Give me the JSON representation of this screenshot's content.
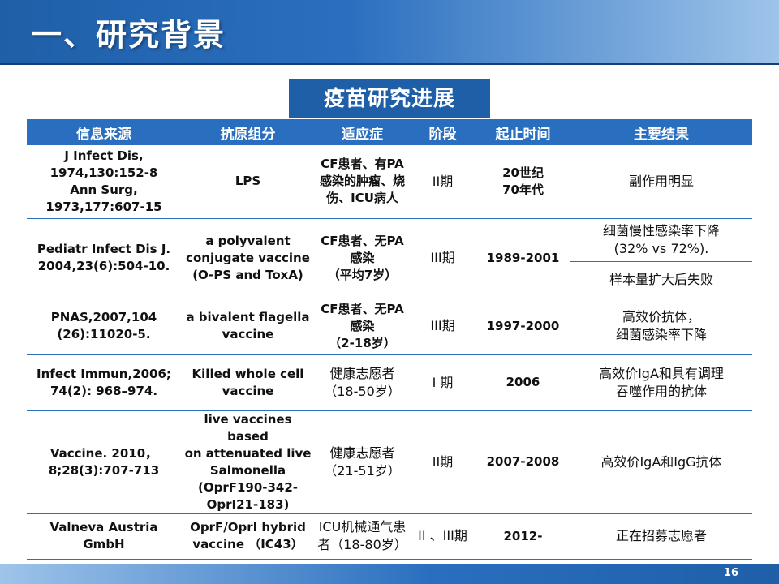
{
  "slide": {
    "title": "一、研究背景",
    "table_caption": "疫苗研究进展",
    "page_number": "16"
  },
  "table": {
    "headers": [
      "信息来源",
      "抗原组分",
      "适应症",
      "阶段",
      "起止时间",
      "主要结果"
    ],
    "rows": [
      {
        "source": "J Infect Dis,\n1974,130:152-8\nAnn Surg,\n1973,177:607-15",
        "antigen": "LPS",
        "indication": "CF患者、有PA\n感染的肿瘤、烧\n伤、ICU病人",
        "phase": "II期",
        "period": "20世纪\n70年代",
        "results": [
          "副作用明显"
        ]
      },
      {
        "source": "Pediatr Infect Dis J.\n2004,23(6):504-10.",
        "antigen": "a polyvalent\nconjugate vaccine\n(O-PS and ToxA)",
        "indication": "CF患者、无PA\n感染\n（平均7岁）",
        "phase": "III期",
        "period": "1989-2001",
        "results": [
          "细菌慢性感染率下降\n(32% vs 72%).",
          "样本量扩大后失败"
        ]
      },
      {
        "source": "PNAS,2007,104\n(26):11020-5.",
        "antigen": "a bivalent flagella\nvaccine",
        "indication": "CF患者、无PA\n感染\n（2-18岁）",
        "phase": "III期",
        "period": "1997-2000",
        "results": [
          "高效价抗体，\n细菌感染率下降"
        ]
      },
      {
        "source": "Infect Immun,2006;\n74(2): 968–974.",
        "antigen": "Killed whole cell\nvaccine",
        "indication": "健康志愿者\n（18-50岁）",
        "phase": "I 期",
        "period": "2006",
        "results": [
          "高效价IgA和具有调理\n吞噬作用的抗体"
        ]
      },
      {
        "source": "Vaccine. 2010，\n8;28(3):707-713",
        "antigen": "live vaccines based\non attenuated live\nSalmonella\n(OprF190-342-\nOprI21-183)",
        "indication": "健康志愿者\n（21-51岁）",
        "phase": "II期",
        "period": "2007-2008",
        "results": [
          "高效价IgA和IgG抗体"
        ]
      },
      {
        "source": "Valneva Austria\nGmbH",
        "antigen": "OprF/OprI hybrid\nvaccine （IC43）",
        "indication": "ICU机械通气患\n者（18-80岁）",
        "phase": "II 、III期",
        "period": "2012-",
        "results": [
          "正在招募志愿者"
        ]
      }
    ]
  },
  "colors": {
    "header_blue": "#1f5fa8",
    "table_header_blue": "#2a6fbf",
    "light_blue": "#9ec4ea"
  }
}
